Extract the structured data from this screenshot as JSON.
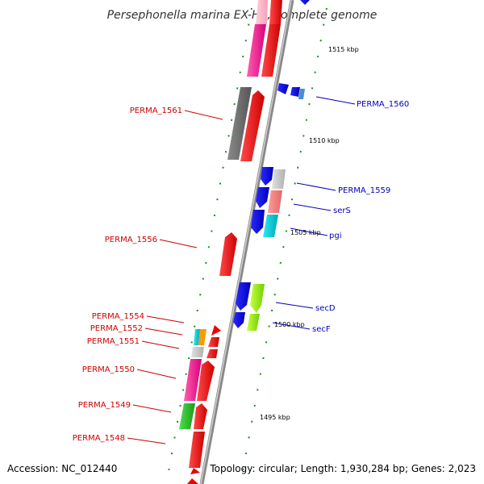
{
  "title": "Persephonella marina EX-H1, complete genome",
  "footer": {
    "accession": "Accession: NC_012440",
    "summary": "Topology: circular; Length: 1,930,284 bp; Genes: 2,023"
  },
  "scale_labels": [
    "1515 kbp",
    "1510 kbp",
    "1505 kbp",
    "1500 kbp",
    "1495 kbp"
  ],
  "gene_labels": {
    "left": [
      "PERMA_1561",
      "PERMA_1556",
      "PERMA_1554",
      "PERMA_1552",
      "PERMA_1551",
      "PERMA_1550",
      "PERMA_1549",
      "PERMA_1548"
    ],
    "right": [
      "PERMA_1560",
      "PERMA_1559",
      "serS",
      "pgi",
      "secD",
      "secF"
    ]
  },
  "colors": {
    "forward_label": "#cc0000",
    "reverse_label": "#0000bb",
    "backbone": "#888888",
    "tick": "#228b22"
  }
}
